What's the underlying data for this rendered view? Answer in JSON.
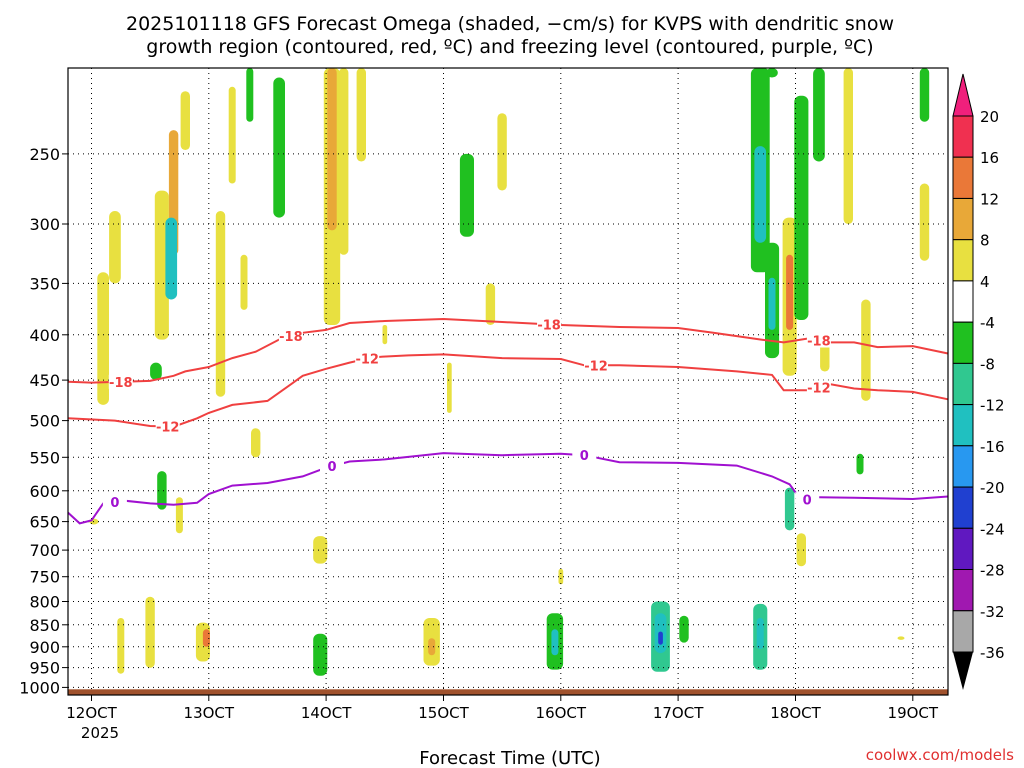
{
  "chart_data": {
    "type": "heatmap",
    "title_line1": "2025101118 GFS Forecast Omega (shaded, −cm/s) for KVPS with dendritic snow",
    "title_line2": "growth region (contoured, red, ºC) and freezing level (contoured, purple, ºC)",
    "xlabel": "Forecast Time (UTC)",
    "ylabel": "",
    "credit": "coolwx.com/models",
    "year_label": "2025",
    "x_ticks": [
      {
        "label": "12OCT",
        "day": 12
      },
      {
        "label": "13OCT",
        "day": 13
      },
      {
        "label": "14OCT",
        "day": 14
      },
      {
        "label": "15OCT",
        "day": 15
      },
      {
        "label": "16OCT",
        "day": 16
      },
      {
        "label": "17OCT",
        "day": 17
      },
      {
        "label": "18OCT",
        "day": 18
      },
      {
        "label": "19OCT",
        "day": 19
      }
    ],
    "xlim_days": [
      11.8,
      19.3
    ],
    "y_ticks_hpa": [
      250,
      300,
      350,
      400,
      450,
      500,
      550,
      600,
      650,
      700,
      750,
      800,
      850,
      900,
      950,
      1000
    ],
    "ylim_hpa": [
      200,
      1020
    ],
    "surface_pressure_hpa": 1005,
    "colorbar": {
      "labels": [
        "20",
        "16",
        "12",
        "8",
        "4",
        "-4",
        "-8",
        "-12",
        "-16",
        "-20",
        "-24",
        "-28",
        "-32",
        "-36"
      ],
      "colors": [
        "#f03050",
        "#ea7838",
        "#e8a838",
        "#e8e040",
        "#ffffff",
        "#20c020",
        "#30c890",
        "#20c0c0",
        "#2898f0",
        "#2040d0",
        "#6018c0",
        "#a018b0",
        "#a8a8a8"
      ],
      "top_arrow_color": "#f0207c",
      "bottom_arrow_color": "#000000"
    },
    "contour_labels": {
      "m18": "-18",
      "m12": "-12",
      "zero": "0"
    },
    "series": [
      {
        "name": "-18",
        "color": "#f04040",
        "points": [
          [
            11.8,
            452
          ],
          [
            12.0,
            453
          ],
          [
            12.5,
            451
          ],
          [
            12.7,
            445
          ],
          [
            12.8,
            440
          ],
          [
            13.0,
            435
          ],
          [
            13.2,
            425
          ],
          [
            13.4,
            418
          ],
          [
            13.6,
            405
          ],
          [
            13.8,
            398
          ],
          [
            14.0,
            395
          ],
          [
            14.2,
            388
          ],
          [
            14.5,
            386
          ],
          [
            15.0,
            384
          ],
          [
            15.5,
            387
          ],
          [
            16.0,
            390
          ],
          [
            16.5,
            392
          ],
          [
            17.0,
            393
          ],
          [
            17.3,
            398
          ],
          [
            17.7,
            405
          ],
          [
            17.9,
            408
          ],
          [
            18.1,
            404
          ],
          [
            18.3,
            408
          ],
          [
            18.5,
            408
          ],
          [
            18.7,
            413
          ],
          [
            19.0,
            412
          ],
          [
            19.3,
            420
          ]
        ]
      },
      {
        "name": "-12",
        "color": "#f04040",
        "points": [
          [
            11.8,
            497
          ],
          [
            12.2,
            500
          ],
          [
            12.5,
            507
          ],
          [
            12.7,
            508
          ],
          [
            12.9,
            497
          ],
          [
            13.0,
            490
          ],
          [
            13.2,
            480
          ],
          [
            13.5,
            475
          ],
          [
            13.7,
            455
          ],
          [
            13.8,
            445
          ],
          [
            14.0,
            437
          ],
          [
            14.2,
            430
          ],
          [
            14.4,
            424
          ],
          [
            14.7,
            422
          ],
          [
            15.0,
            421
          ],
          [
            15.5,
            425
          ],
          [
            16.0,
            426
          ],
          [
            16.2,
            433
          ],
          [
            16.5,
            433
          ],
          [
            17.0,
            435
          ],
          [
            17.5,
            440
          ],
          [
            17.8,
            444
          ],
          [
            17.9,
            462
          ],
          [
            18.1,
            462
          ],
          [
            18.3,
            455
          ],
          [
            18.5,
            460
          ],
          [
            18.7,
            462
          ],
          [
            19.0,
            464
          ],
          [
            19.3,
            473
          ]
        ]
      },
      {
        "name": "0",
        "color": "#a010d0",
        "points": [
          [
            11.8,
            635
          ],
          [
            11.9,
            653
          ],
          [
            12.0,
            648
          ],
          [
            12.1,
            620
          ],
          [
            12.3,
            616
          ],
          [
            12.5,
            620
          ],
          [
            12.7,
            622
          ],
          [
            12.9,
            619
          ],
          [
            13.0,
            605
          ],
          [
            13.2,
            592
          ],
          [
            13.5,
            588
          ],
          [
            13.8,
            578
          ],
          [
            14.0,
            565
          ],
          [
            14.2,
            556
          ],
          [
            14.5,
            553
          ],
          [
            15.0,
            544
          ],
          [
            15.5,
            547
          ],
          [
            16.0,
            545
          ],
          [
            16.2,
            547
          ],
          [
            16.5,
            557
          ],
          [
            17.0,
            558
          ],
          [
            17.5,
            562
          ],
          [
            17.8,
            578
          ],
          [
            17.95,
            590
          ],
          [
            18.05,
            615
          ],
          [
            18.2,
            610
          ],
          [
            18.5,
            611
          ],
          [
            19.0,
            613
          ],
          [
            19.3,
            609
          ]
        ]
      }
    ],
    "omega_cells": [
      {
        "day": 12.02,
        "p": 650,
        "dx": 0.04,
        "dp": 10,
        "v": 3
      },
      {
        "day": 12.1,
        "p": 410,
        "dx": 0.05,
        "dp": 140,
        "v": 3
      },
      {
        "day": 12.2,
        "p": 320,
        "dx": 0.05,
        "dp": 60,
        "v": 2
      },
      {
        "day": 12.55,
        "p": 440,
        "dx": 0.05,
        "dp": 20,
        "v": -5
      },
      {
        "day": 12.6,
        "p": 340,
        "dx": 0.06,
        "dp": 130,
        "v": 4
      },
      {
        "day": 12.7,
        "p": 280,
        "dx": 0.04,
        "dp": 90,
        "v": 9
      },
      {
        "day": 12.68,
        "p": 330,
        "dx": 0.05,
        "dp": 70,
        "v": -12
      },
      {
        "day": 12.8,
        "p": 230,
        "dx": 0.04,
        "dp": 35,
        "v": 3
      },
      {
        "day": 12.25,
        "p": 900,
        "dx": 0.03,
        "dp": 130,
        "v": 3
      },
      {
        "day": 12.6,
        "p": 600,
        "dx": 0.04,
        "dp": 60,
        "v": -6
      },
      {
        "day": 12.5,
        "p": 870,
        "dx": 0.04,
        "dp": 160,
        "v": 3
      },
      {
        "day": 12.75,
        "p": 640,
        "dx": 0.03,
        "dp": 60,
        "v": 3
      },
      {
        "day": 12.95,
        "p": 890,
        "dx": 0.06,
        "dp": 90,
        "v": 6
      },
      {
        "day": 13.1,
        "p": 380,
        "dx": 0.04,
        "dp": 180,
        "v": 3
      },
      {
        "day": 13.4,
        "p": 530,
        "dx": 0.04,
        "dp": 40,
        "v": 3
      },
      {
        "day": 13.6,
        "p": 250,
        "dx": 0.05,
        "dp": 90,
        "v": -6
      },
      {
        "day": 13.95,
        "p": 920,
        "dx": 0.06,
        "dp": 100,
        "v": -6
      },
      {
        "day": 14.05,
        "p": 280,
        "dx": 0.07,
        "dp": 220,
        "v": 5
      },
      {
        "day": 14.05,
        "p": 250,
        "dx": 0.04,
        "dp": 110,
        "v": 9
      },
      {
        "day": 14.3,
        "p": 220,
        "dx": 0.04,
        "dp": 70,
        "v": 3
      },
      {
        "day": 13.95,
        "p": 700,
        "dx": 0.06,
        "dp": 50,
        "v": 5
      },
      {
        "day": 14.9,
        "p": 890,
        "dx": 0.07,
        "dp": 110,
        "v": 6
      },
      {
        "day": 14.9,
        "p": 900,
        "dx": 0.03,
        "dp": 40,
        "v": 10
      },
      {
        "day": 15.2,
        "p": 280,
        "dx": 0.06,
        "dp": 60,
        "v": -6
      },
      {
        "day": 15.5,
        "p": 250,
        "dx": 0.04,
        "dp": 50,
        "v": 3
      },
      {
        "day": 15.4,
        "p": 370,
        "dx": 0.04,
        "dp": 40,
        "v": 3
      },
      {
        "day": 15.95,
        "p": 890,
        "dx": 0.07,
        "dp": 130,
        "v": -7
      },
      {
        "day": 15.95,
        "p": 890,
        "dx": 0.03,
        "dp": 60,
        "v": -13
      },
      {
        "day": 16.85,
        "p": 880,
        "dx": 0.08,
        "dp": 160,
        "v": -8
      },
      {
        "day": 16.85,
        "p": 870,
        "dx": 0.05,
        "dp": 90,
        "v": -15
      },
      {
        "day": 16.85,
        "p": 880,
        "dx": 0.02,
        "dp": 30,
        "v": -22
      },
      {
        "day": 17.05,
        "p": 860,
        "dx": 0.04,
        "dp": 60,
        "v": -6
      },
      {
        "day": 17.7,
        "p": 880,
        "dx": 0.06,
        "dp": 150,
        "v": -8
      },
      {
        "day": 17.7,
        "p": 870,
        "dx": 0.03,
        "dp": 70,
        "v": -13
      },
      {
        "day": 17.7,
        "p": 270,
        "dx": 0.08,
        "dp": 140,
        "v": -6
      },
      {
        "day": 17.7,
        "p": 280,
        "dx": 0.05,
        "dp": 70,
        "v": -13
      },
      {
        "day": 17.8,
        "p": 370,
        "dx": 0.06,
        "dp": 110,
        "v": -6
      },
      {
        "day": 17.8,
        "p": 370,
        "dx": 0.03,
        "dp": 50,
        "v": -15
      },
      {
        "day": 17.95,
        "p": 370,
        "dx": 0.06,
        "dp": 150,
        "v": 5
      },
      {
        "day": 17.95,
        "p": 360,
        "dx": 0.03,
        "dp": 70,
        "v": 12
      },
      {
        "day": 18.05,
        "p": 300,
        "dx": 0.06,
        "dp": 170,
        "v": -6
      },
      {
        "day": 17.95,
        "p": 630,
        "dx": 0.04,
        "dp": 70,
        "v": -10
      },
      {
        "day": 18.05,
        "p": 700,
        "dx": 0.04,
        "dp": 60,
        "v": 3
      },
      {
        "day": 17.8,
        "p": 190,
        "dx": 0.05,
        "dp": 30,
        "v": -6
      },
      {
        "day": 18.2,
        "p": 210,
        "dx": 0.05,
        "dp": 90,
        "v": -6
      },
      {
        "day": 18.25,
        "p": 420,
        "dx": 0.04,
        "dp": 40,
        "v": 3
      },
      {
        "day": 18.45,
        "p": 250,
        "dx": 0.04,
        "dp": 100,
        "v": 3
      },
      {
        "day": 18.6,
        "p": 420,
        "dx": 0.04,
        "dp": 110,
        "v": 3
      },
      {
        "day": 18.55,
        "p": 560,
        "dx": 0.03,
        "dp": 30,
        "v": -6
      },
      {
        "day": 19.1,
        "p": 300,
        "dx": 0.04,
        "dp": 60,
        "v": 3
      },
      {
        "day": 19.1,
        "p": 210,
        "dx": 0.04,
        "dp": 40,
        "v": -6
      },
      {
        "day": 18.9,
        "p": 880,
        "dx": 0.03,
        "dp": 8,
        "v": 3
      },
      {
        "day": 16.0,
        "p": 750,
        "dx": 0.02,
        "dp": 30,
        "v": 3
      },
      {
        "day": 14.5,
        "p": 400,
        "dx": 0.02,
        "dp": 20,
        "v": 3
      },
      {
        "day": 15.05,
        "p": 460,
        "dx": 0.02,
        "dp": 60,
        "v": 3
      },
      {
        "day": 13.3,
        "p": 350,
        "dx": 0.03,
        "dp": 50,
        "v": 3
      },
      {
        "day": 12.98,
        "p": 880,
        "dx": 0.03,
        "dp": 40,
        "v": 12
      },
      {
        "day": 13.35,
        "p": 210,
        "dx": 0.03,
        "dp": 40,
        "v": -6
      },
      {
        "day": 13.2,
        "p": 240,
        "dx": 0.03,
        "dp": 60,
        "v": 3
      },
      {
        "day": 14.15,
        "p": 250,
        "dx": 0.04,
        "dp": 150,
        "v": 5
      }
    ]
  }
}
